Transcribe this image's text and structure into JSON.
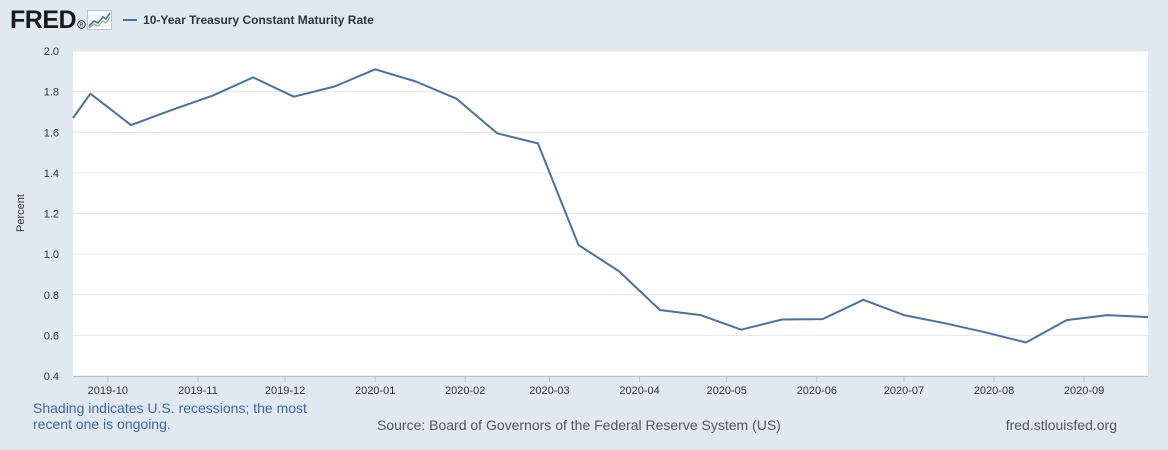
{
  "header": {
    "logo_text": "FRED",
    "legend_label": "10-Year Treasury Constant Maturity Rate"
  },
  "footer": {
    "note": "Shading indicates U.S. recessions; the most recent one is ongoing.",
    "source": "Source: Board of Governors of the Federal Reserve System (US)",
    "site": "fred.stlouisfed.org"
  },
  "colors": {
    "background": "#e1e9f0",
    "plot": "#ffffff",
    "series": "#4572a7",
    "note_text": "#3e66a4"
  },
  "chart_data": {
    "type": "line",
    "title": "",
    "xlabel": "",
    "ylabel": "Percent",
    "ylim": [
      0.4,
      2.0
    ],
    "yticks": [
      0.4,
      0.6,
      0.8,
      1.0,
      1.2,
      1.4,
      1.6,
      1.8,
      2.0
    ],
    "ytick_labels": [
      "0.4",
      "0.6",
      "0.8",
      "1.0",
      "1.2",
      "1.4",
      "1.6",
      "1.8",
      "2.0"
    ],
    "xlim": [
      "2019-09-19",
      "2020-09-23"
    ],
    "xticks": [
      "2019-10-01",
      "2019-11-01",
      "2019-12-01",
      "2020-01-01",
      "2020-02-01",
      "2020-03-01",
      "2020-04-01",
      "2020-05-01",
      "2020-06-01",
      "2020-07-01",
      "2020-08-01",
      "2020-09-01"
    ],
    "xtick_labels": [
      "2019-10",
      "2019-11",
      "2019-12",
      "2020-01",
      "2020-02",
      "2020-03",
      "2020-04",
      "2020-05",
      "2020-06",
      "2020-07",
      "2020-08",
      "2020-09"
    ],
    "grid": true,
    "legend": "top-left",
    "series": [
      {
        "name": "10-Year Treasury Constant Maturity Rate",
        "color": "#4572a7",
        "x": [
          "2019-09-19",
          "2019-09-25",
          "2019-10-09",
          "2019-10-23",
          "2019-11-06",
          "2019-11-20",
          "2019-12-04",
          "2019-12-18",
          "2020-01-01",
          "2020-01-15",
          "2020-01-29",
          "2020-02-12",
          "2020-02-26",
          "2020-03-11",
          "2020-03-25",
          "2020-04-08",
          "2020-04-22",
          "2020-05-06",
          "2020-05-20",
          "2020-06-03",
          "2020-06-17",
          "2020-07-01",
          "2020-07-15",
          "2020-07-29",
          "2020-08-12",
          "2020-08-26",
          "2020-09-09",
          "2020-09-23"
        ],
        "y": [
          1.67,
          1.79,
          1.635,
          1.71,
          1.78,
          1.87,
          1.775,
          1.825,
          1.91,
          1.85,
          1.765,
          1.595,
          1.545,
          1.045,
          0.915,
          0.725,
          0.7,
          0.628,
          0.678,
          0.68,
          0.775,
          0.7,
          0.66,
          0.615,
          0.565,
          0.675,
          0.7,
          0.69
        ]
      }
    ]
  }
}
